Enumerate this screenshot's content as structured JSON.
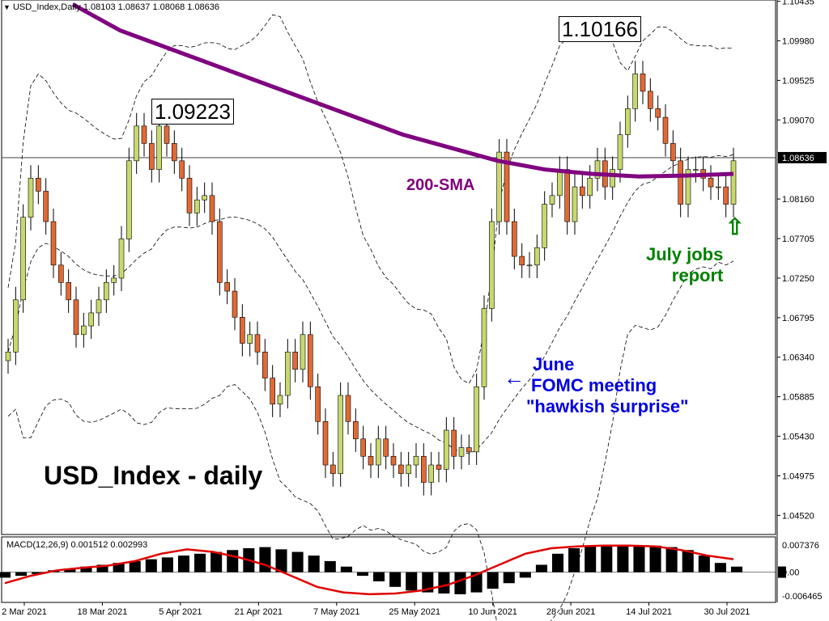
{
  "chart_data": {
    "title": "USD_Index,Daily",
    "ohlc_header": "1.08103 1.08637 1.08068 1.08636",
    "type": "candlestick",
    "y_axis_ticks": [
      "1.10435",
      "1.09980",
      "1.09525",
      "1.09070",
      "1.08636",
      "1.08160",
      "1.07705",
      "1.07250",
      "1.06795",
      "1.06340",
      "1.05885",
      "1.05430",
      "1.04975",
      "1.04520"
    ],
    "last_price": "1.08636",
    "ylim": [
      1.043,
      1.1045
    ],
    "x_ticks": [
      "2 Mar 2021",
      "18 Mar 2021",
      "5 Apr 2021",
      "21 Apr 2021",
      "7 May 2021",
      "25 May 2021",
      "10 Jun 2021",
      "28 Jun 2021",
      "14 Jul 2021",
      "30 Jul 2021"
    ],
    "candles_close": [
      1.064,
      1.07,
      1.0795,
      1.084,
      1.0825,
      1.079,
      1.074,
      1.072,
      1.07,
      1.066,
      1.067,
      1.0685,
      1.07,
      1.072,
      1.0725,
      1.077,
      1.086,
      1.09,
      1.088,
      1.085,
      1.09,
      1.088,
      1.086,
      1.084,
      1.08,
      1.0815,
      1.082,
      1.079,
      1.072,
      1.071,
      1.068,
      1.065,
      1.066,
      1.064,
      1.061,
      1.058,
      1.059,
      1.064,
      1.062,
      1.066,
      1.06,
      1.056,
      1.051,
      1.05,
      1.059,
      1.056,
      1.054,
      1.052,
      1.051,
      1.054,
      1.052,
      1.051,
      1.05,
      1.051,
      1.052,
      1.049,
      1.051,
      1.0505,
      1.055,
      1.052,
      1.053,
      1.0525,
      1.06,
      1.069,
      1.079,
      1.087,
      1.079,
      1.075,
      1.074,
      1.074,
      1.076,
      1.081,
      1.082,
      1.085,
      1.079,
      1.083,
      1.082,
      1.084,
      1.086,
      1.083,
      1.085,
      1.089,
      1.092,
      1.096,
      1.094,
      1.092,
      1.091,
      1.088,
      1.086,
      1.081,
      1.085,
      1.085,
      1.084,
      1.083,
      1.083,
      1.081,
      1.086
    ],
    "sma200": [
      1.104,
      1.101,
      1.099,
      1.097,
      1.095,
      1.093,
      1.091,
      1.089,
      1.0875,
      1.086,
      1.085,
      1.0845,
      1.0842,
      1.0843,
      1.0845
    ],
    "macd_label": "MACD(12,26,9) 0.001512 0.002993",
    "macd_ticks": [
      "0.007376",
      "0.00",
      "-0.006465"
    ],
    "macd_hist": [
      -0.0015,
      -0.001,
      -0.0005,
      0.0005,
      0.001,
      0.0015,
      0.002,
      0.0025,
      0.003,
      0.0035,
      0.004,
      0.0045,
      0.005,
      0.0055,
      0.006,
      0.0065,
      0.0068,
      0.0062,
      0.0055,
      0.0045,
      0.003,
      0.0015,
      -0.001,
      -0.0025,
      -0.004,
      -0.005,
      -0.0055,
      -0.0058,
      -0.006,
      -0.0055,
      -0.0045,
      -0.003,
      -0.0015,
      0.002,
      0.005,
      0.0065,
      0.007,
      0.0072,
      0.0073,
      0.0073,
      0.0072,
      0.0068,
      0.006,
      0.0045,
      0.0025,
      0.0015
    ],
    "macd_signal": [
      -0.003,
      -0.001,
      0.0005,
      0.0012,
      0.0018,
      0.003,
      0.005,
      0.0062,
      0.0055,
      0.004,
      0.002,
      -0.001,
      -0.004,
      -0.0055,
      -0.006,
      -0.0058,
      -0.005,
      -0.0035,
      -0.001,
      0.002,
      0.005,
      0.0065,
      0.007,
      0.0072,
      0.0072,
      0.007,
      0.006,
      0.0045,
      0.0035
    ]
  },
  "annotations": {
    "price_high1": "1.09223",
    "price_high2": "1.10166",
    "sma_label": "200-SMA",
    "june_line1": "June",
    "june_line2": "FOMC meeting",
    "june_line3": "\"hawkish surprise\"",
    "july_line1": "July jobs",
    "july_line2": "report",
    "main_title": "USD_Index - daily",
    "arrow_left": "←",
    "arrow_up": "⇧"
  },
  "colors": {
    "up_candle": "#C8D86E",
    "down_candle": "#E06A35",
    "sma": "#800080",
    "macd_signal": "#E00000",
    "june_text": "#0000E0",
    "july_text": "#008000"
  }
}
